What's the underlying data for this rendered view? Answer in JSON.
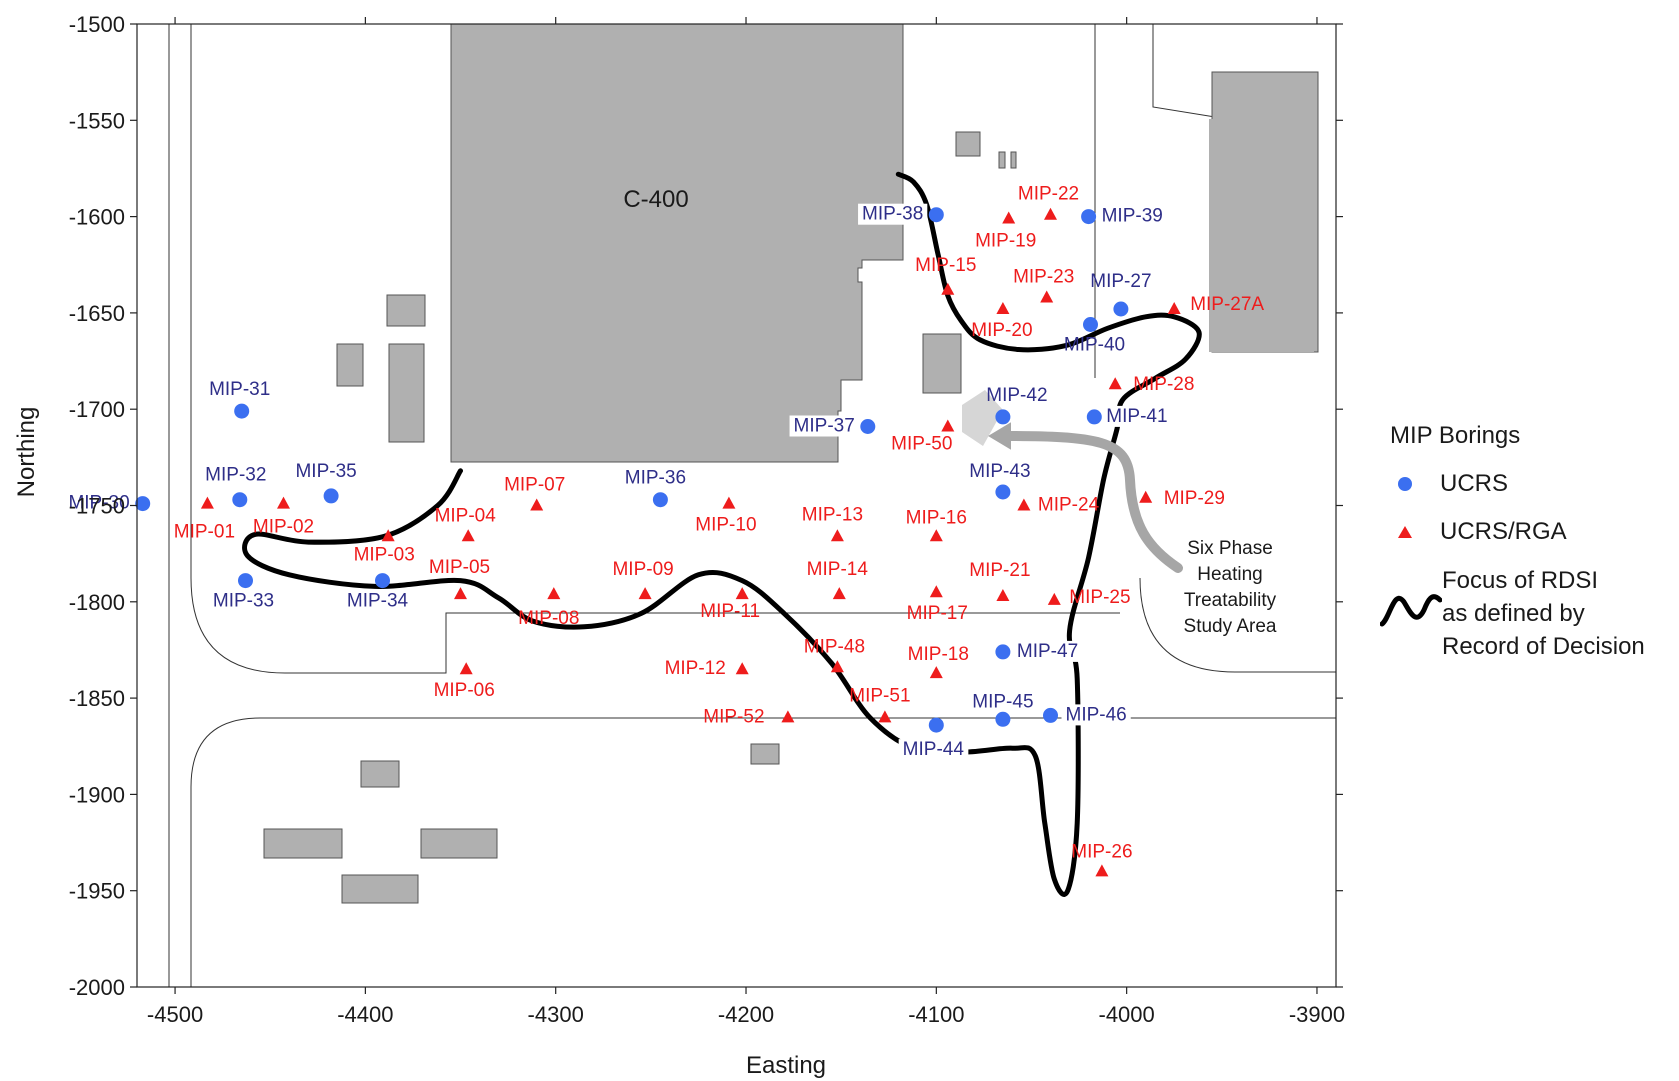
{
  "chart_data": {
    "type": "scatter",
    "title": "",
    "xlabel": "Easting",
    "ylabel": "Northing",
    "xlim": [
      -4520,
      -3890
    ],
    "ylim": [
      -2000,
      -1500
    ],
    "x_ticks": [
      -4500,
      -4400,
      -4300,
      -4200,
      -4100,
      -4000,
      -3900
    ],
    "y_ticks": [
      -1500,
      -1550,
      -1600,
      -1650,
      -1700,
      -1750,
      -1800,
      -1850,
      -1900,
      -1950,
      -2000
    ],
    "grid": false,
    "building_label": "C-400",
    "study_area_label": [
      "Six Phase",
      "Heating",
      "Treatability",
      "Study Area"
    ],
    "legend": {
      "placement": "right",
      "title": "MIP Borings",
      "ucrs_label": "UCRS",
      "rga_label": "UCRS/RGA",
      "focus_label": [
        "Focus of RDSI",
        "as defined by",
        "Record of Decision"
      ]
    },
    "colors": {
      "ucrs": "#3b6ff0",
      "ucrs_rga": "#ee1c1c",
      "ucrs_text": "#2e2e88",
      "ucrs_rga_text": "#ee1c1c",
      "building": "#b0b0b0",
      "focus_line": "#000000",
      "arrow": "#a6a6a6"
    },
    "series": [
      {
        "name": "UCRS",
        "points": [
          {
            "label": "MIP-30",
            "x": -4517,
            "y": -1749
          },
          {
            "label": "MIP-31",
            "x": -4465,
            "y": -1701
          },
          {
            "label": "MIP-32",
            "x": -4466,
            "y": -1747
          },
          {
            "label": "MIP-33",
            "x": -4463,
            "y": -1789
          },
          {
            "label": "MIP-34",
            "x": -4391,
            "y": -1789
          },
          {
            "label": "MIP-35",
            "x": -4418,
            "y": -1745
          },
          {
            "label": "MIP-36",
            "x": -4245,
            "y": -1747
          },
          {
            "label": "MIP-37",
            "x": -4136,
            "y": -1709
          },
          {
            "label": "MIP-38",
            "x": -4100,
            "y": -1599
          },
          {
            "label": "MIP-39",
            "x": -4020,
            "y": -1600
          },
          {
            "label": "MIP-27",
            "x": -4003,
            "y": -1648
          },
          {
            "label": "MIP-40",
            "x": -4019,
            "y": -1656
          },
          {
            "label": "MIP-41",
            "x": -4017,
            "y": -1704
          },
          {
            "label": "MIP-42",
            "x": -4065,
            "y": -1704
          },
          {
            "label": "MIP-43",
            "x": -4065,
            "y": -1743
          },
          {
            "label": "MIP-47",
            "x": -4065,
            "y": -1826
          },
          {
            "label": "MIP-44",
            "x": -4100,
            "y": -1864
          },
          {
            "label": "MIP-45",
            "x": -4065,
            "y": -1861
          },
          {
            "label": "MIP-46",
            "x": -4040,
            "y": -1859
          }
        ]
      },
      {
        "name": "UCRS/RGA",
        "points": [
          {
            "label": "MIP-01",
            "x": -4483,
            "y": -1749
          },
          {
            "label": "MIP-02",
            "x": -4443,
            "y": -1749
          },
          {
            "label": "MIP-03",
            "x": -4388,
            "y": -1766
          },
          {
            "label": "MIP-04",
            "x": -4346,
            "y": -1766
          },
          {
            "label": "MIP-05",
            "x": -4350,
            "y": -1796
          },
          {
            "label": "MIP-06",
            "x": -4347,
            "y": -1835
          },
          {
            "label": "MIP-07",
            "x": -4310,
            "y": -1750
          },
          {
            "label": "MIP-08",
            "x": -4301,
            "y": -1796
          },
          {
            "label": "MIP-09",
            "x": -4253,
            "y": -1796
          },
          {
            "label": "MIP-10",
            "x": -4209,
            "y": -1749
          },
          {
            "label": "MIP-11",
            "x": -4202,
            "y": -1796
          },
          {
            "label": "MIP-12",
            "x": -4202,
            "y": -1835
          },
          {
            "label": "MIP-13",
            "x": -4152,
            "y": -1766
          },
          {
            "label": "MIP-14",
            "x": -4151,
            "y": -1796
          },
          {
            "label": "MIP-15",
            "x": -4094,
            "y": -1638
          },
          {
            "label": "MIP-16",
            "x": -4100,
            "y": -1766
          },
          {
            "label": "MIP-17",
            "x": -4100,
            "y": -1795
          },
          {
            "label": "MIP-18",
            "x": -4100,
            "y": -1837
          },
          {
            "label": "MIP-19",
            "x": -4062,
            "y": -1601
          },
          {
            "label": "MIP-20",
            "x": -4065,
            "y": -1648
          },
          {
            "label": "MIP-21",
            "x": -4065,
            "y": -1797
          },
          {
            "label": "MIP-22",
            "x": -4040,
            "y": -1599
          },
          {
            "label": "MIP-23",
            "x": -4042,
            "y": -1642
          },
          {
            "label": "MIP-24",
            "x": -4054,
            "y": -1750
          },
          {
            "label": "MIP-25",
            "x": -4038,
            "y": -1799
          },
          {
            "label": "MIP-26",
            "x": -4013,
            "y": -1940
          },
          {
            "label": "MIP-27A",
            "x": -3975,
            "y": -1648
          },
          {
            "label": "MIP-28",
            "x": -4006,
            "y": -1687
          },
          {
            "label": "MIP-29",
            "x": -3990,
            "y": -1746
          },
          {
            "label": "MIP-48",
            "x": -4152,
            "y": -1834
          },
          {
            "label": "MIP-50",
            "x": -4094,
            "y": -1709
          },
          {
            "label": "MIP-51",
            "x": -4127,
            "y": -1860
          },
          {
            "label": "MIP-52",
            "x": -4178,
            "y": -1860
          }
        ]
      }
    ]
  }
}
